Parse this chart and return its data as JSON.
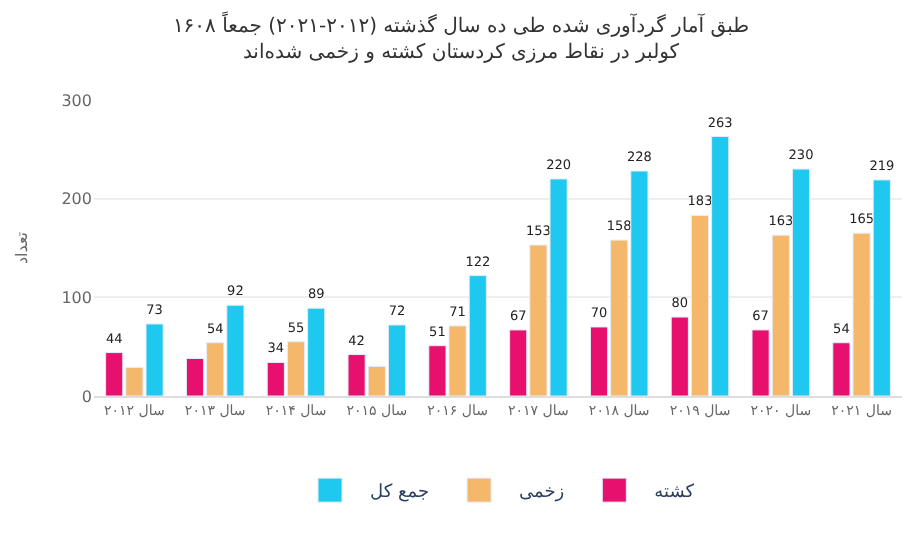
{
  "chart_data": {
    "type": "bar",
    "title": "طبق آمار گردآوری شده طی ده سال گذشته (۲۰۱۲-۲۰۲۱) جمعاً ۱۶۰۸\nکولبر در نقاط مرزی کردستان کشته و زخمی شده‌اند",
    "ylabel": "تعداد",
    "categories": [
      "سال ۲۰۱۲",
      "سال ۲۰۱۳",
      "سال ۲۰۱۴",
      "سال ۲۰۱۵",
      "سال ۲۰۱۶",
      "سال ۲۰۱۷",
      "سال ۲۰۱۸",
      "سال ۲۰۱۹",
      "سال ۲۰۲۰",
      "سال ۲۰۲۱"
    ],
    "series": [
      {
        "name": "کشته",
        "color": "#e8106e",
        "values": [
          44,
          38,
          34,
          42,
          51,
          67,
          70,
          80,
          67,
          54
        ],
        "value_labels": [
          "44",
          null,
          "34",
          "42",
          "51",
          "67",
          "70",
          "80",
          "67",
          "54"
        ]
      },
      {
        "name": "زخمی",
        "color": "#f5b86a",
        "values": [
          29,
          54,
          55,
          30,
          71,
          153,
          158,
          183,
          163,
          165
        ],
        "value_labels": [
          null,
          "54",
          "55",
          null,
          "71",
          "153",
          "158",
          "183",
          "163",
          "165"
        ]
      },
      {
        "name": "جمع کل",
        "color": "#1ec8ee",
        "values": [
          73,
          92,
          89,
          72,
          122,
          220,
          228,
          263,
          230,
          219
        ],
        "value_labels": [
          "73",
          "92",
          "89",
          "72",
          "122",
          "220",
          "228",
          "263",
          "230",
          "219"
        ]
      }
    ],
    "ylim": [
      0,
      300
    ],
    "yticks": [
      0,
      100,
      200,
      300
    ],
    "grid": "y",
    "legend": "bottom"
  }
}
